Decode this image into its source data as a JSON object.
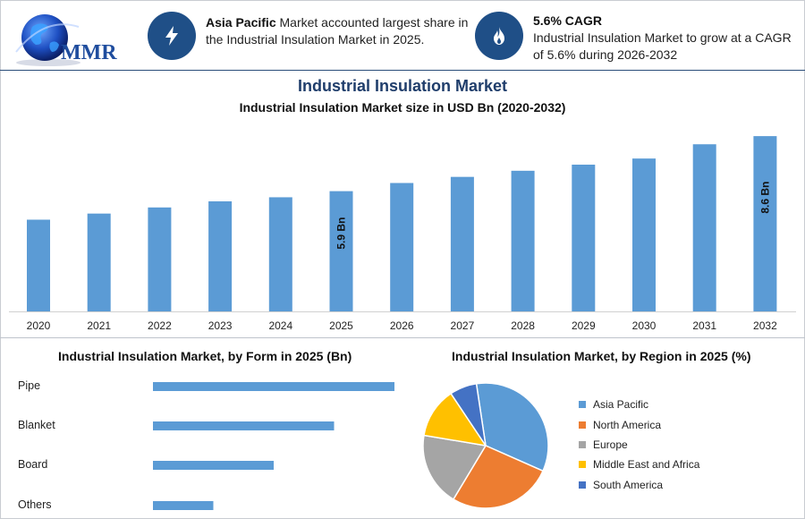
{
  "header": {
    "logo_text": "MMR",
    "info1": {
      "bold": "Asia Pacific",
      "rest": " Market accounted largest share in the Industrial Insulation Market in 2025.",
      "icon": "lightning-icon"
    },
    "info2": {
      "bold": "5.6% CAGR",
      "rest": "Industrial Insulation Market to grow at a CAGR of 5.6% during 2026-2032",
      "icon": "flame-icon"
    }
  },
  "main_title": "Industrial Insulation Market",
  "colors": {
    "bar": "#5b9bd5",
    "navy": "#1f4f87",
    "rule": "#2a4d7a"
  },
  "chart_data": [
    {
      "type": "bar",
      "title": "Industrial Insulation Market size in USD Bn (2020-2032)",
      "categories": [
        "2020",
        "2021",
        "2022",
        "2023",
        "2024",
        "2025",
        "2026",
        "2027",
        "2028",
        "2029",
        "2030",
        "2031",
        "2032"
      ],
      "values": [
        4.5,
        4.8,
        5.1,
        5.4,
        5.6,
        5.9,
        6.3,
        6.6,
        6.9,
        7.2,
        7.5,
        8.2,
        8.6
      ],
      "data_labels": [
        null,
        null,
        null,
        null,
        null,
        "5.9 Bn",
        null,
        null,
        null,
        null,
        null,
        null,
        "8.6 Bn"
      ],
      "ylim": [
        0,
        9
      ],
      "grid": false
    },
    {
      "type": "bar",
      "orientation": "horizontal",
      "title": "Industrial Insulation Market, by Form in 2025 (Bn)",
      "categories": [
        "Pipe",
        "Blanket",
        "Board",
        "Others"
      ],
      "values": [
        2.4,
        1.8,
        1.2,
        0.6
      ],
      "xlim": [
        0,
        2.4
      ]
    },
    {
      "type": "pie",
      "title": "Industrial Insulation Market, by Region in 2025 (%)",
      "labels": [
        "Asia Pacific",
        "North America",
        "Europe",
        "Middle East and Africa",
        "South America"
      ],
      "values": [
        34,
        27,
        19,
        13,
        7
      ],
      "colors": [
        "#5b9bd5",
        "#ed7d31",
        "#a5a5a5",
        "#ffc000",
        "#4472c4"
      ],
      "legend": "right"
    }
  ]
}
